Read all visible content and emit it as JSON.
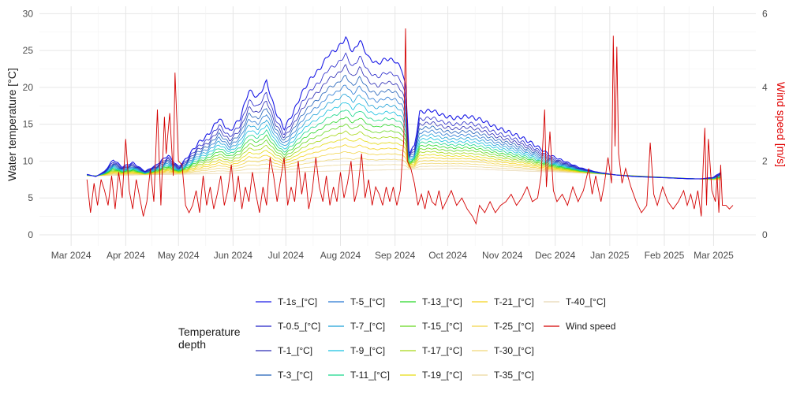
{
  "chart_data": {
    "type": "line",
    "title": "",
    "ylabel_left": "Water temperature [°C]",
    "ylabel_right": "Wind speed [m/s]",
    "ylabel_right_color": "#e00000",
    "xlim": [
      "2024-02-12",
      "2025-03-25"
    ],
    "ylim_left": [
      -1.5,
      31
    ],
    "ylim_right": [
      -0.3,
      6.2
    ],
    "left_ticks": [
      0,
      5,
      10,
      15,
      20,
      25,
      30
    ],
    "right_ticks": [
      0,
      2,
      4,
      6
    ],
    "x_ticks": [
      {
        "date": "2024-03-01",
        "label": "Mar 2024"
      },
      {
        "date": "2024-04-01",
        "label": "Apr 2024"
      },
      {
        "date": "2024-05-01",
        "label": "May 2024"
      },
      {
        "date": "2024-06-01",
        "label": "Jun 2024"
      },
      {
        "date": "2024-07-01",
        "label": "Jul 2024"
      },
      {
        "date": "2024-08-01",
        "label": "Aug 2024"
      },
      {
        "date": "2024-09-01",
        "label": "Sep 2024"
      },
      {
        "date": "2024-10-01",
        "label": "Oct 2024"
      },
      {
        "date": "2024-11-01",
        "label": "Nov 2024"
      },
      {
        "date": "2024-12-01",
        "label": "Dec 2024"
      },
      {
        "date": "2025-01-01",
        "label": "Jan 2025"
      },
      {
        "date": "2025-02-01",
        "label": "Feb 2025"
      },
      {
        "date": "2025-03-01",
        "label": "Mar 2025"
      }
    ],
    "grid": true,
    "legend": {
      "title": "Temperature\ndepth",
      "placement": "bottom",
      "columns": 5
    },
    "temperature_series": [
      {
        "name": "T-1s_[°C]",
        "color": "#1a1ae6",
        "surface": [
          [
            "2024-03-10",
            8.2
          ],
          [
            "2024-03-15",
            7.9
          ],
          [
            "2024-03-20",
            8.6
          ],
          [
            "2024-03-25",
            10.2
          ],
          [
            "2024-03-30",
            9.2
          ],
          [
            "2024-04-05",
            9.8
          ],
          [
            "2024-04-12",
            8.6
          ],
          [
            "2024-04-18",
            9.4
          ],
          [
            "2024-04-25",
            10.8
          ],
          [
            "2024-05-01",
            9.2
          ],
          [
            "2024-05-06",
            10.5
          ],
          [
            "2024-05-12",
            12.4
          ],
          [
            "2024-05-18",
            13.6
          ],
          [
            "2024-05-24",
            15.8
          ],
          [
            "2024-05-30",
            14.0
          ],
          [
            "2024-06-05",
            15.8
          ],
          [
            "2024-06-10",
            19.6
          ],
          [
            "2024-06-15",
            18.6
          ],
          [
            "2024-06-20",
            20.8
          ],
          [
            "2024-06-25",
            16.8
          ],
          [
            "2024-06-30",
            14.4
          ],
          [
            "2024-07-05",
            16.5
          ],
          [
            "2024-07-10",
            19.2
          ],
          [
            "2024-07-15",
            21.2
          ],
          [
            "2024-07-20",
            22.4
          ],
          [
            "2024-07-25",
            24.4
          ],
          [
            "2024-07-30",
            25.2
          ],
          [
            "2024-08-04",
            26.7
          ],
          [
            "2024-08-08",
            24.7
          ],
          [
            "2024-08-12",
            26.4
          ],
          [
            "2024-08-17",
            24.0
          ],
          [
            "2024-08-22",
            23.2
          ],
          [
            "2024-08-27",
            23.9
          ],
          [
            "2024-09-01",
            23.6
          ],
          [
            "2024-09-05",
            22.4
          ],
          [
            "2024-09-07",
            20.2
          ],
          [
            "2024-09-09",
            11.2
          ],
          [
            "2024-09-12",
            12.0
          ],
          [
            "2024-09-15",
            16.6
          ],
          [
            "2024-09-22",
            16.9
          ],
          [
            "2024-09-28",
            16.2
          ],
          [
            "2024-10-05",
            15.8
          ],
          [
            "2024-10-12",
            16.1
          ],
          [
            "2024-10-20",
            15.6
          ],
          [
            "2024-10-28",
            14.6
          ],
          [
            "2024-11-05",
            13.9
          ],
          [
            "2024-11-12",
            13.2
          ],
          [
            "2024-11-20",
            12.1
          ],
          [
            "2024-11-28",
            10.8
          ],
          [
            "2024-12-05",
            10.1
          ],
          [
            "2024-12-15",
            9.1
          ],
          [
            "2024-12-25",
            8.5
          ],
          [
            "2025-01-05",
            8.1
          ],
          [
            "2025-01-15",
            7.9
          ],
          [
            "2025-01-25",
            7.8
          ],
          [
            "2025-02-05",
            7.7
          ],
          [
            "2025-02-15",
            7.6
          ],
          [
            "2025-02-22",
            7.6
          ],
          [
            "2025-03-01",
            7.8
          ],
          [
            "2025-03-05",
            8.5
          ]
        ]
      },
      {
        "name": "T-0.5_[°C]",
        "color": "#2222c8"
      },
      {
        "name": "T-1_[°C]",
        "color": "#2a2ab4"
      },
      {
        "name": "T-3_[°C]",
        "color": "#1f5fb8"
      },
      {
        "name": "T-5_[°C]",
        "color": "#2878d2"
      },
      {
        "name": "T-7_[°C]",
        "color": "#1ca0d8"
      },
      {
        "name": "T-9_[°C]",
        "color": "#16c0e0"
      },
      {
        "name": "T-11_[°C]",
        "color": "#18d68a"
      },
      {
        "name": "T-13_[°C]",
        "color": "#28d828"
      },
      {
        "name": "T-15_[°C]",
        "color": "#66d81e"
      },
      {
        "name": "T-17_[°C]",
        "color": "#a6d816"
      },
      {
        "name": "T-19_[°C]",
        "color": "#e6dc12"
      },
      {
        "name": "T-21_[°C]",
        "color": "#f4d21c"
      },
      {
        "name": "T-25_[°C]",
        "color": "#f2d448"
      },
      {
        "name": "T-30_[°C]",
        "color": "#f0d878"
      },
      {
        "name": "T-35_[°C]",
        "color": "#ecd89c"
      },
      {
        "name": "T-40_[°C]",
        "color": "#e8d8b4"
      }
    ],
    "wind_series": {
      "name": "Wind speed",
      "color": "#d40000",
      "points": [
        [
          "2024-03-10",
          1.5
        ],
        [
          "2024-03-12",
          0.6
        ],
        [
          "2024-03-14",
          1.4
        ],
        [
          "2024-03-16",
          0.8
        ],
        [
          "2024-03-18",
          1.5
        ],
        [
          "2024-03-20",
          1.2
        ],
        [
          "2024-03-22",
          0.8
        ],
        [
          "2024-03-24",
          1.6
        ],
        [
          "2024-03-26",
          0.7
        ],
        [
          "2024-03-28",
          1.7
        ],
        [
          "2024-03-30",
          1.0
        ],
        [
          "2024-04-01",
          2.6
        ],
        [
          "2024-04-03",
          1.2
        ],
        [
          "2024-04-05",
          0.7
        ],
        [
          "2024-04-07",
          1.5
        ],
        [
          "2024-04-09",
          1.0
        ],
        [
          "2024-04-11",
          0.5
        ],
        [
          "2024-04-13",
          0.9
        ],
        [
          "2024-04-15",
          1.8
        ],
        [
          "2024-04-17",
          0.9
        ],
        [
          "2024-04-19",
          3.4
        ],
        [
          "2024-04-21",
          0.8
        ],
        [
          "2024-04-23",
          3.2
        ],
        [
          "2024-04-24",
          2.2
        ],
        [
          "2024-04-26",
          3.3
        ],
        [
          "2024-04-28",
          1.6
        ],
        [
          "2024-04-29",
          4.4
        ],
        [
          "2024-05-01",
          2.0
        ],
        [
          "2024-05-03",
          1.9
        ],
        [
          "2024-05-05",
          0.8
        ],
        [
          "2024-05-07",
          0.6
        ],
        [
          "2024-05-09",
          0.8
        ],
        [
          "2024-05-11",
          1.2
        ],
        [
          "2024-05-13",
          0.6
        ],
        [
          "2024-05-15",
          1.6
        ],
        [
          "2024-05-17",
          0.8
        ],
        [
          "2024-05-19",
          1.3
        ],
        [
          "2024-05-21",
          0.7
        ],
        [
          "2024-05-23",
          1.1
        ],
        [
          "2024-05-25",
          1.6
        ],
        [
          "2024-05-27",
          0.8
        ],
        [
          "2024-05-29",
          1.2
        ],
        [
          "2024-05-31",
          1.9
        ],
        [
          "2024-06-02",
          0.9
        ],
        [
          "2024-06-04",
          1.6
        ],
        [
          "2024-06-06",
          0.7
        ],
        [
          "2024-06-08",
          1.3
        ],
        [
          "2024-06-10",
          0.9
        ],
        [
          "2024-06-12",
          1.7
        ],
        [
          "2024-06-14",
          1.1
        ],
        [
          "2024-06-16",
          0.6
        ],
        [
          "2024-06-18",
          1.3
        ],
        [
          "2024-06-20",
          0.8
        ],
        [
          "2024-06-22",
          2.1
        ],
        [
          "2024-06-24",
          1.6
        ],
        [
          "2024-06-26",
          0.9
        ],
        [
          "2024-06-28",
          1.5
        ],
        [
          "2024-06-30",
          2.1
        ],
        [
          "2024-07-02",
          0.8
        ],
        [
          "2024-07-04",
          1.3
        ],
        [
          "2024-07-06",
          0.9
        ],
        [
          "2024-07-08",
          2.0
        ],
        [
          "2024-07-10",
          1.1
        ],
        [
          "2024-07-12",
          1.7
        ],
        [
          "2024-07-14",
          0.7
        ],
        [
          "2024-07-16",
          1.2
        ],
        [
          "2024-07-18",
          2.1
        ],
        [
          "2024-07-20",
          1.3
        ],
        [
          "2024-07-22",
          0.9
        ],
        [
          "2024-07-24",
          1.6
        ],
        [
          "2024-07-26",
          0.8
        ],
        [
          "2024-07-28",
          1.3
        ],
        [
          "2024-07-30",
          0.9
        ],
        [
          "2024-08-01",
          1.7
        ],
        [
          "2024-08-03",
          1.0
        ],
        [
          "2024-08-05",
          1.4
        ],
        [
          "2024-08-07",
          2.0
        ],
        [
          "2024-08-09",
          0.9
        ],
        [
          "2024-08-11",
          1.3
        ],
        [
          "2024-08-13",
          2.2
        ],
        [
          "2024-08-15",
          1.0
        ],
        [
          "2024-08-17",
          1.5
        ],
        [
          "2024-08-19",
          0.8
        ],
        [
          "2024-08-21",
          1.3
        ],
        [
          "2024-08-23",
          1.1
        ],
        [
          "2024-08-25",
          0.8
        ],
        [
          "2024-08-27",
          1.3
        ],
        [
          "2024-08-29",
          0.9
        ],
        [
          "2024-08-31",
          1.3
        ],
        [
          "2024-09-02",
          0.8
        ],
        [
          "2024-09-04",
          1.2
        ],
        [
          "2024-09-06",
          2.6
        ],
        [
          "2024-09-07",
          5.6
        ],
        [
          "2024-09-08",
          2.0
        ],
        [
          "2024-09-10",
          1.8
        ],
        [
          "2024-09-12",
          1.4
        ],
        [
          "2024-09-14",
          0.8
        ],
        [
          "2024-09-16",
          1.1
        ],
        [
          "2024-09-18",
          0.7
        ],
        [
          "2024-09-20",
          1.2
        ],
        [
          "2024-09-22",
          0.9
        ],
        [
          "2024-09-24",
          0.8
        ],
        [
          "2024-09-26",
          1.2
        ],
        [
          "2024-09-28",
          0.7
        ],
        [
          "2024-09-30",
          0.9
        ],
        [
          "2024-10-03",
          1.2
        ],
        [
          "2024-10-06",
          0.8
        ],
        [
          "2024-10-09",
          1.0
        ],
        [
          "2024-10-12",
          0.7
        ],
        [
          "2024-10-15",
          0.5
        ],
        [
          "2024-10-17",
          0.3
        ],
        [
          "2024-10-19",
          0.8
        ],
        [
          "2024-10-22",
          0.6
        ],
        [
          "2024-10-25",
          0.9
        ],
        [
          "2024-10-28",
          0.6
        ],
        [
          "2024-10-31",
          0.8
        ],
        [
          "2024-11-03",
          0.9
        ],
        [
          "2024-11-06",
          1.1
        ],
        [
          "2024-11-09",
          0.8
        ],
        [
          "2024-11-12",
          1.0
        ],
        [
          "2024-11-15",
          1.3
        ],
        [
          "2024-11-18",
          0.9
        ],
        [
          "2024-11-21",
          1.0
        ],
        [
          "2024-11-23",
          1.6
        ],
        [
          "2024-11-25",
          3.4
        ],
        [
          "2024-11-26",
          1.3
        ],
        [
          "2024-11-28",
          2.8
        ],
        [
          "2024-11-30",
          1.2
        ],
        [
          "2024-12-02",
          0.9
        ],
        [
          "2024-12-05",
          1.1
        ],
        [
          "2024-12-08",
          0.8
        ],
        [
          "2024-12-11",
          1.3
        ],
        [
          "2024-12-14",
          0.9
        ],
        [
          "2024-12-17",
          1.2
        ],
        [
          "2024-12-20",
          1.8
        ],
        [
          "2024-12-22",
          1.1
        ],
        [
          "2024-12-24",
          1.6
        ],
        [
          "2024-12-27",
          0.9
        ],
        [
          "2024-12-29",
          1.4
        ],
        [
          "2024-12-31",
          2.1
        ],
        [
          "2025-01-02",
          1.4
        ],
        [
          "2025-01-03",
          5.4
        ],
        [
          "2025-01-04",
          2.4
        ],
        [
          "2025-01-05",
          5.1
        ],
        [
          "2025-01-06",
          2.2
        ],
        [
          "2025-01-08",
          1.4
        ],
        [
          "2025-01-10",
          1.8
        ],
        [
          "2025-01-13",
          1.3
        ],
        [
          "2025-01-16",
          0.9
        ],
        [
          "2025-01-19",
          0.6
        ],
        [
          "2025-01-22",
          0.8
        ],
        [
          "2025-01-24",
          2.5
        ],
        [
          "2025-01-26",
          1.1
        ],
        [
          "2025-01-28",
          0.8
        ],
        [
          "2025-01-31",
          1.3
        ],
        [
          "2025-02-03",
          0.9
        ],
        [
          "2025-02-06",
          0.7
        ],
        [
          "2025-02-09",
          0.9
        ],
        [
          "2025-02-12",
          1.2
        ],
        [
          "2025-02-14",
          0.8
        ],
        [
          "2025-02-16",
          1.1
        ],
        [
          "2025-02-18",
          0.7
        ],
        [
          "2025-02-20",
          1.2
        ],
        [
          "2025-02-22",
          0.5
        ],
        [
          "2025-02-23",
          1.8
        ],
        [
          "2025-02-24",
          2.9
        ],
        [
          "2025-02-25",
          0.8
        ],
        [
          "2025-02-26",
          2.6
        ],
        [
          "2025-02-28",
          1.2
        ],
        [
          "2025-03-02",
          0.9
        ],
        [
          "2025-03-03",
          1.6
        ],
        [
          "2025-03-04",
          0.6
        ],
        [
          "2025-03-05",
          1.9
        ],
        [
          "2025-03-06",
          0.8
        ],
        [
          "2025-03-08",
          0.8
        ],
        [
          "2025-03-10",
          0.7
        ],
        [
          "2025-03-12",
          0.8
        ]
      ]
    }
  }
}
